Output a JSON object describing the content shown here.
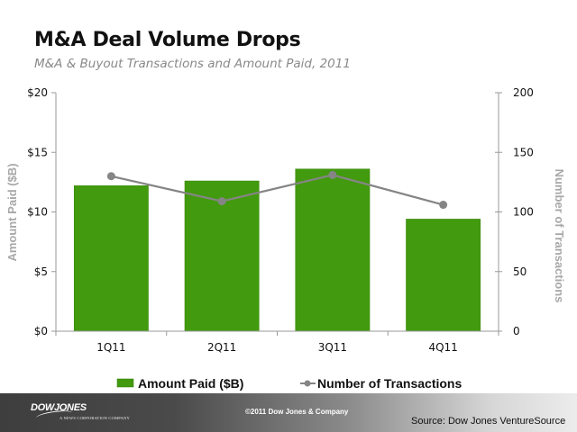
{
  "header": {
    "title": "M&A Deal Volume Drops",
    "subtitle": "M&A & Buyout Transactions and Amount Paid, 2011"
  },
  "chart_data": {
    "type": "bar",
    "title": "M&A Deal Volume Drops",
    "subtitle": "M&A & Buyout Transactions and Amount Paid, 2011",
    "categories": [
      "1Q11",
      "2Q11",
      "3Q11",
      "4Q11"
    ],
    "series": [
      {
        "name": "Amount Paid ($B)",
        "type": "bar",
        "axis": "left",
        "color": "#429a0e",
        "values": [
          12.2,
          12.6,
          13.6,
          9.4
        ]
      },
      {
        "name": "Number of Transactions",
        "type": "line",
        "axis": "right",
        "color": "#858585",
        "values": [
          130,
          109,
          131,
          106
        ]
      }
    ],
    "y_left": {
      "label": "Amount Paid ($B)",
      "lim": [
        0,
        20
      ],
      "ticks": [
        0,
        5,
        10,
        15,
        20
      ],
      "tick_labels": [
        "$0",
        "$5",
        "$10",
        "$15",
        "$20"
      ]
    },
    "y_right": {
      "label": "Number of Transactions",
      "lim": [
        0,
        200
      ],
      "ticks": [
        0,
        50,
        100,
        150,
        200
      ],
      "tick_labels": [
        "0",
        "50",
        "100",
        "150",
        "200"
      ]
    },
    "xlabel": "",
    "grid": false,
    "legend": {
      "position": "bottom",
      "entries": [
        "Amount Paid ($B)",
        "Number of Transactions"
      ]
    }
  },
  "footer": {
    "logo": "DOWJONES",
    "logo_tagline": "A NEWS CORPORATION COMPANY",
    "copyright": "©2011 Dow Jones & Company",
    "source": "Source: Dow Jones VentureSource"
  }
}
